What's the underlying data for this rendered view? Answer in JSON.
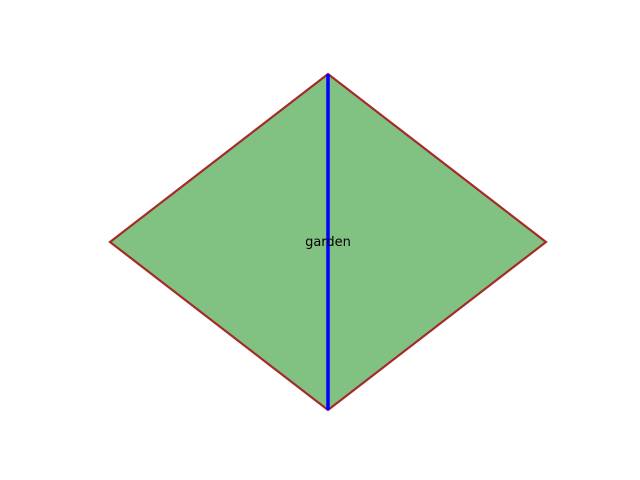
{
  "diagram": {
    "shape": "rhombus",
    "region_label": "garden",
    "fill_color": "#81c181",
    "outline_color": "#a52a2a",
    "diagonal_color": "#0000ff",
    "background_color": "#ffffff"
  }
}
